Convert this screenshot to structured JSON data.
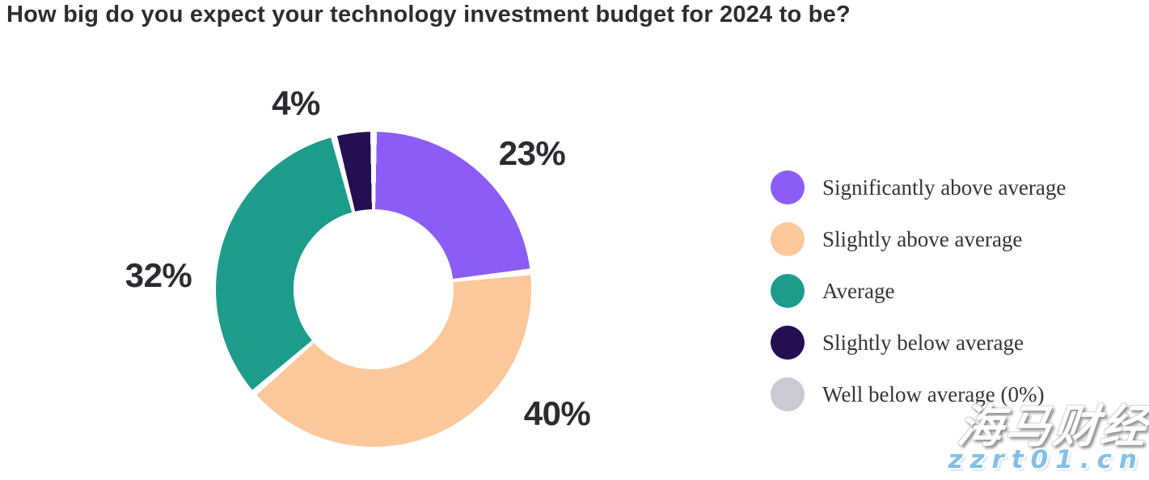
{
  "chart_data": {
    "type": "pie",
    "subtype": "donut",
    "title": "How big do you expect your technology investment budget for 2024 to be?",
    "unit": "%",
    "start_angle_deg": 0,
    "direction": "clockwise",
    "hole_ratio": 0.5,
    "slice_gap_color": "#ffffff",
    "legend_position": "right",
    "slices": [
      {
        "label": "Significantly above average",
        "value": 23,
        "display": "23%",
        "color": "#8B5CF6"
      },
      {
        "label": "Slightly above average",
        "value": 40,
        "display": "40%",
        "color": "#FAC89B"
      },
      {
        "label": "Average",
        "value": 32,
        "display": "32%",
        "color": "#1D9C8C"
      },
      {
        "label": "Slightly below average",
        "value": 4,
        "display": "4%",
        "color": "#250E52"
      },
      {
        "label": "Well below average (0%)",
        "value": 0,
        "color": "#CBC9D4"
      }
    ]
  },
  "watermark": {
    "line1": "海马财经",
    "line2": "zzrt01.cn",
    "line2_color": "#85BFE9"
  }
}
